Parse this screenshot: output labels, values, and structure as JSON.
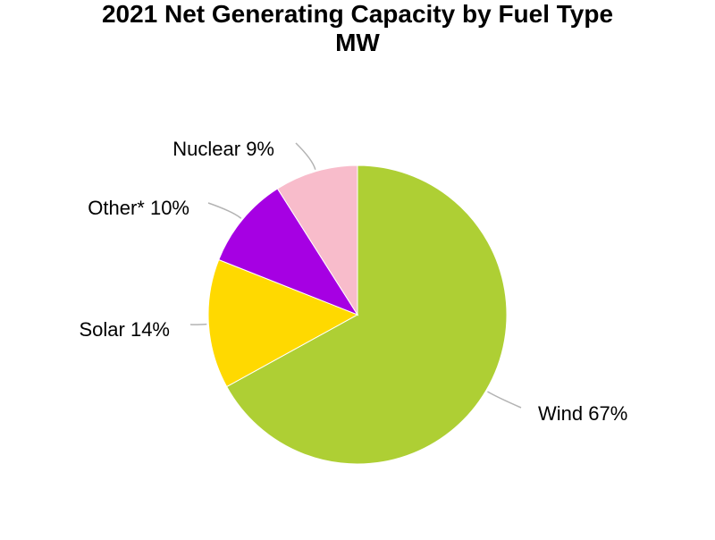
{
  "chart_data": {
    "type": "pie",
    "title": "2021 Net Generating Capacity by Fuel Type",
    "subtitle": "MW",
    "slices": [
      {
        "label": "Wind",
        "value": 67,
        "display": "Wind 67%",
        "color": "#aecf34"
      },
      {
        "label": "Solar",
        "value": 14,
        "display": "Solar 14%",
        "color": "#ffd900"
      },
      {
        "label": "Other*",
        "value": 10,
        "display": "Other* 10%",
        "color": "#a600e3"
      },
      {
        "label": "Nuclear",
        "value": 9,
        "display": "Nuclear 9%",
        "color": "#f8bccb"
      }
    ],
    "start_angle": "12 o'clock",
    "direction": "clockwise",
    "leader_line_color": "#b3b3b3"
  }
}
